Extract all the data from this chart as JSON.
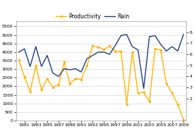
{
  "years": [
    1980,
    1981,
    1982,
    1983,
    1984,
    1985,
    1986,
    1987,
    1988,
    1989,
    1990,
    1991,
    1992,
    1993,
    1994,
    1995,
    1996,
    1997,
    1998,
    1999,
    2000,
    2001,
    2002,
    2003,
    2004,
    2005,
    2006,
    2007,
    2008,
    2009
  ],
  "productivity": [
    3550,
    2550,
    1700,
    3200,
    1800,
    2450,
    1950,
    2100,
    3400,
    2150,
    2450,
    2400,
    3200,
    4350,
    4300,
    4150,
    4350,
    4050,
    4050,
    950,
    4000,
    1600,
    1650,
    1100,
    4200,
    4100,
    2150,
    1600,
    950,
    50
  ],
  "rain": [
    6.2,
    6.5,
    4.9,
    6.7,
    4.9,
    5.9,
    4.3,
    4.0,
    4.7,
    4.6,
    4.7,
    4.4,
    5.6,
    5.9,
    6.2,
    6.2,
    6.0,
    6.8,
    7.7,
    7.8,
    6.7,
    6.4,
    2.9,
    7.6,
    7.7,
    6.9,
    6.3,
    6.7,
    6.3,
    7.8
  ],
  "productivity_color": "#FFB300",
  "rain_color": "#1F3E7C",
  "left_ylim": [
    0,
    5800
  ],
  "right_ylim": [
    0,
    9
  ],
  "left_yticks": [
    0,
    500,
    1000,
    1500,
    2000,
    2500,
    3000,
    3500,
    4000,
    4500,
    5000,
    5500
  ],
  "right_yticks": [
    2,
    3,
    4,
    5,
    6,
    7,
    8
  ],
  "legend_labels": [
    "Productivity",
    "Rain"
  ],
  "marker_size": 2.5,
  "line_width": 1.0,
  "grid_color": "#CCCCCC",
  "spine_color": "#AAAAAA"
}
